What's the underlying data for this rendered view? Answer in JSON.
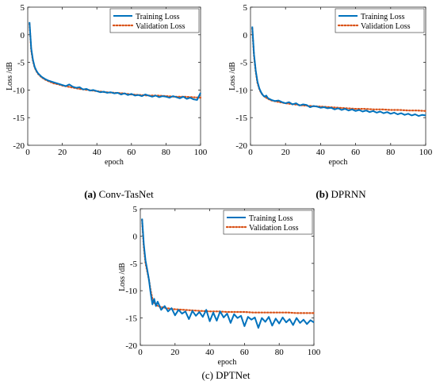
{
  "chart_data": [
    {
      "type": "line",
      "panel_label": "(a)",
      "caption": "Conv-TasNet",
      "xlabel": "epoch",
      "ylabel": "Loss /dB",
      "xlim": [
        0,
        100
      ],
      "ylim": [
        -20,
        5
      ],
      "xticks": [
        0,
        20,
        40,
        60,
        80,
        100
      ],
      "yticks": [
        5,
        0,
        -5,
        -10,
        -15,
        -20
      ],
      "legend_position": "top-right",
      "grid": false,
      "series": [
        {
          "name": "Training Loss",
          "color": "#0072BD",
          "style": "solid",
          "x": [
            1,
            2,
            3,
            4,
            5,
            6,
            8,
            10,
            12,
            15,
            18,
            20,
            22,
            24,
            26,
            28,
            30,
            32,
            34,
            36,
            38,
            40,
            42,
            44,
            46,
            48,
            50,
            52,
            54,
            56,
            58,
            60,
            62,
            64,
            66,
            68,
            70,
            72,
            74,
            76,
            78,
            80,
            82,
            84,
            86,
            88,
            90,
            92,
            94,
            96,
            98,
            100
          ],
          "y": [
            2.3,
            -2.5,
            -4.5,
            -5.8,
            -6.5,
            -7.0,
            -7.6,
            -8.0,
            -8.3,
            -8.6,
            -8.9,
            -9.1,
            -9.3,
            -9.0,
            -9.4,
            -9.6,
            -9.5,
            -9.9,
            -9.8,
            -10.1,
            -10.0,
            -10.2,
            -10.4,
            -10.3,
            -10.5,
            -10.4,
            -10.6,
            -10.5,
            -10.8,
            -10.6,
            -10.9,
            -10.7,
            -11.0,
            -10.9,
            -11.1,
            -10.8,
            -11.0,
            -11.2,
            -11.0,
            -11.3,
            -11.1,
            -11.2,
            -11.4,
            -11.1,
            -11.3,
            -11.5,
            -11.2,
            -11.6,
            -11.4,
            -11.7,
            -11.8,
            -10.5
          ]
        },
        {
          "name": "Validation Loss",
          "color": "#D95319",
          "style": "dotted",
          "x": [
            1,
            2,
            3,
            4,
            5,
            6,
            8,
            10,
            12,
            15,
            18,
            20,
            25,
            30,
            35,
            40,
            45,
            50,
            55,
            60,
            65,
            70,
            75,
            80,
            85,
            90,
            95,
            100
          ],
          "y": [
            2.0,
            -2.8,
            -4.7,
            -5.9,
            -6.6,
            -7.1,
            -7.7,
            -8.1,
            -8.4,
            -8.8,
            -9.0,
            -9.2,
            -9.5,
            -9.8,
            -10.0,
            -10.2,
            -10.4,
            -10.5,
            -10.6,
            -10.8,
            -10.9,
            -11.0,
            -11.0,
            -11.1,
            -11.2,
            -11.2,
            -11.3,
            -11.4
          ]
        }
      ]
    },
    {
      "type": "line",
      "panel_label": "(b)",
      "caption": "DPRNN",
      "xlabel": "epoch",
      "ylabel": "Loss /dB",
      "xlim": [
        0,
        100
      ],
      "ylim": [
        -20,
        5
      ],
      "xticks": [
        0,
        20,
        40,
        60,
        80,
        100
      ],
      "yticks": [
        5,
        0,
        -5,
        -10,
        -15,
        -20
      ],
      "legend_position": "top-right",
      "grid": false,
      "series": [
        {
          "name": "Training Loss",
          "color": "#0072BD",
          "style": "solid",
          "x": [
            1,
            2,
            3,
            4,
            5,
            6,
            7,
            8,
            9,
            10,
            12,
            14,
            16,
            18,
            20,
            22,
            24,
            26,
            28,
            30,
            32,
            34,
            36,
            38,
            40,
            42,
            44,
            46,
            48,
            50,
            52,
            54,
            56,
            58,
            60,
            62,
            64,
            66,
            68,
            70,
            72,
            74,
            76,
            78,
            80,
            82,
            84,
            86,
            88,
            90,
            92,
            94,
            96,
            98,
            100
          ],
          "y": [
            1.5,
            -3.5,
            -6.5,
            -8.5,
            -9.7,
            -10.4,
            -10.9,
            -11.2,
            -11.0,
            -11.5,
            -11.8,
            -12.0,
            -11.9,
            -12.2,
            -12.4,
            -12.2,
            -12.6,
            -12.4,
            -12.8,
            -12.6,
            -12.7,
            -13.1,
            -12.9,
            -13.0,
            -13.2,
            -13.1,
            -13.3,
            -13.2,
            -13.5,
            -13.3,
            -13.6,
            -13.4,
            -13.7,
            -13.5,
            -13.8,
            -13.6,
            -13.9,
            -13.7,
            -14.0,
            -13.8,
            -14.1,
            -13.9,
            -14.2,
            -14.0,
            -14.3,
            -14.1,
            -14.4,
            -14.2,
            -14.5,
            -14.3,
            -14.6,
            -14.4,
            -14.7,
            -14.5,
            -14.6
          ]
        },
        {
          "name": "Validation Loss",
          "color": "#D95319",
          "style": "dotted",
          "x": [
            1,
            2,
            3,
            4,
            5,
            6,
            7,
            8,
            10,
            12,
            15,
            20,
            25,
            30,
            35,
            40,
            45,
            50,
            55,
            60,
            65,
            70,
            75,
            80,
            85,
            90,
            95,
            100
          ],
          "y": [
            1.2,
            -3.8,
            -6.7,
            -8.7,
            -9.8,
            -10.5,
            -10.9,
            -11.2,
            -11.6,
            -11.9,
            -12.1,
            -12.4,
            -12.6,
            -12.8,
            -12.9,
            -13.0,
            -13.1,
            -13.2,
            -13.3,
            -13.4,
            -13.4,
            -13.5,
            -13.5,
            -13.6,
            -13.6,
            -13.7,
            -13.7,
            -13.8
          ]
        }
      ]
    },
    {
      "type": "line",
      "panel_label": "(c)",
      "caption": "DPTNet",
      "xlabel": "epoch",
      "ylabel": "Loss /dB",
      "xlim": [
        0,
        100
      ],
      "ylim": [
        -20,
        5
      ],
      "xticks": [
        0,
        20,
        40,
        60,
        80,
        100
      ],
      "yticks": [
        5,
        0,
        -5,
        -10,
        -15,
        -20
      ],
      "legend_position": "top-right",
      "grid": false,
      "series": [
        {
          "name": "Training Loss",
          "color": "#0072BD",
          "style": "solid",
          "x": [
            1,
            2,
            3,
            4,
            5,
            6,
            7,
            8,
            9,
            10,
            12,
            14,
            16,
            18,
            20,
            22,
            24,
            26,
            28,
            30,
            32,
            34,
            36,
            38,
            40,
            42,
            44,
            46,
            48,
            50,
            52,
            54,
            56,
            58,
            60,
            62,
            64,
            66,
            68,
            70,
            72,
            74,
            76,
            78,
            80,
            82,
            84,
            86,
            88,
            90,
            92,
            94,
            96,
            98,
            100
          ],
          "y": [
            3.2,
            -1.5,
            -4.5,
            -6.2,
            -8.0,
            -10.5,
            -12.5,
            -11.5,
            -12.8,
            -12.0,
            -13.5,
            -12.8,
            -13.8,
            -13.2,
            -14.5,
            -13.5,
            -14.2,
            -13.8,
            -15.2,
            -13.7,
            -14.6,
            -13.9,
            -14.8,
            -13.5,
            -15.6,
            -14.0,
            -15.5,
            -13.8,
            -14.9,
            -14.2,
            -15.9,
            -14.3,
            -15.0,
            -14.6,
            -16.5,
            -14.8,
            -15.3,
            -14.9,
            -16.8,
            -15.0,
            -15.7,
            -14.8,
            -16.4,
            -15.1,
            -16.0,
            -14.9,
            -15.8,
            -15.2,
            -16.3,
            -15.0,
            -15.9,
            -15.3,
            -16.1,
            -15.4,
            -15.8
          ]
        },
        {
          "name": "Validation Loss",
          "color": "#D95319",
          "style": "dotted",
          "x": [
            1,
            2,
            3,
            4,
            5,
            6,
            7,
            8,
            10,
            12,
            15,
            20,
            25,
            30,
            35,
            40,
            45,
            50,
            55,
            60,
            65,
            70,
            75,
            80,
            85,
            90,
            95,
            100
          ],
          "y": [
            3.0,
            -2.0,
            -5.0,
            -6.5,
            -8.0,
            -10.0,
            -11.5,
            -12.2,
            -12.8,
            -13.0,
            -13.2,
            -13.4,
            -13.5,
            -13.6,
            -13.7,
            -13.8,
            -13.8,
            -13.9,
            -13.9,
            -13.9,
            -14.0,
            -14.0,
            -14.0,
            -14.0,
            -14.0,
            -14.1,
            -14.1,
            -14.1
          ]
        }
      ]
    }
  ]
}
